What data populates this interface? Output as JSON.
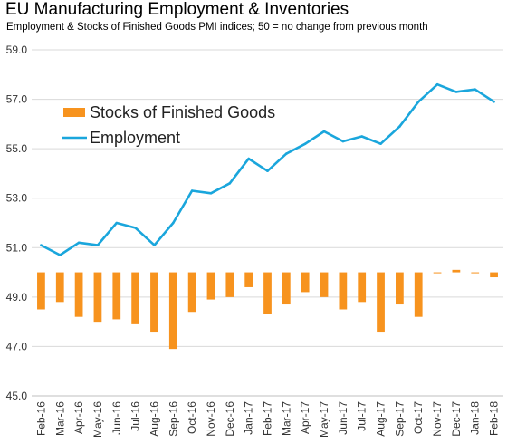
{
  "chart_data": {
    "type": "bar+line",
    "title": "EU Manufacturing Employment & Inventories",
    "subtitle": "Employment & Stocks of Finished Goods PMI indices; 50 = no change from previous month",
    "categories": [
      "Feb-16",
      "Mar-16",
      "Apr-16",
      "May-16",
      "Jun-16",
      "Jul-16",
      "Aug-16",
      "Sep-16",
      "Oct-16",
      "Nov-16",
      "Dec-16",
      "Jan-17",
      "Feb-17",
      "Mar-17",
      "Apr-17",
      "May-17",
      "Jun-17",
      "Jul-17",
      "Aug-17",
      "Sep-17",
      "Oct-17",
      "Nov-17",
      "Dec-17",
      "Jan-18",
      "Feb-18"
    ],
    "ylim": [
      45.0,
      59.0
    ],
    "yticks": [
      "45.0",
      "47.0",
      "49.0",
      "51.0",
      "53.0",
      "55.0",
      "57.0",
      "59.0"
    ],
    "baseline": 50,
    "grid": true,
    "legend_position": "upper-left",
    "series": [
      {
        "name": "Stocks of Finished Goods",
        "kind": "bar",
        "color": "#f7931e",
        "values": [
          48.5,
          48.8,
          48.2,
          48.0,
          48.1,
          47.9,
          47.6,
          46.9,
          48.4,
          48.9,
          49.0,
          49.4,
          48.3,
          48.7,
          49.2,
          49.0,
          48.5,
          48.8,
          47.6,
          48.7,
          48.2,
          50.0,
          50.1,
          50.0,
          49.8
        ]
      },
      {
        "name": "Employment",
        "kind": "line",
        "color": "#1aa6dc",
        "values": [
          51.1,
          50.7,
          51.2,
          51.1,
          52.0,
          51.8,
          51.1,
          52.0,
          53.3,
          53.2,
          53.6,
          54.6,
          54.1,
          54.8,
          55.2,
          55.7,
          55.3,
          55.5,
          55.2,
          55.9,
          56.9,
          57.6,
          57.3,
          57.4,
          56.9
        ]
      }
    ]
  }
}
